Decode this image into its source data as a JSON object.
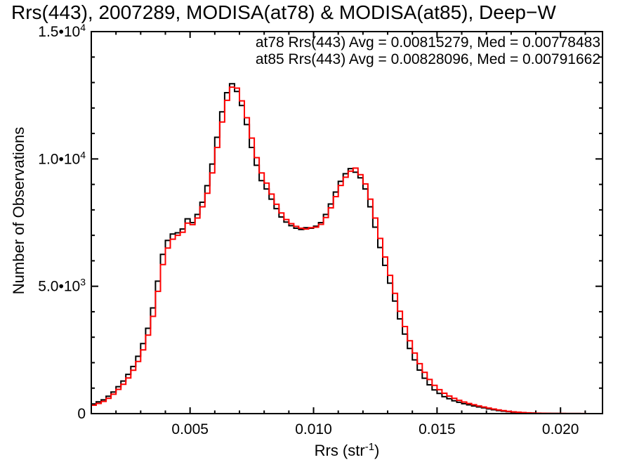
{
  "title": "Rrs(443), 2007289, MODISA(at78) & MODISA(at85), Deep−W",
  "legend": [
    {
      "label": "at78 Rrs(443) Avg = 0.00815279, Med = 0.00778483",
      "color": "#000000"
    },
    {
      "label": "at85 Rrs(443) Avg = 0.00828096, Med = 0.00791662",
      "color": "#ff0000"
    }
  ],
  "axes": {
    "ylabel": "Number of Observations",
    "xlabel_main": "Rrs (str",
    "xlabel_sup": "-1",
    "xlabel_close": ")"
  },
  "chart_data": {
    "type": "line",
    "subtype": "step-histogram",
    "title": "Rrs(443), 2007289, MODISA(at78) & MODISA(at85), Deep−W",
    "xlabel": "Rrs (str^-1)",
    "ylabel": "Number of Observations",
    "grid": false,
    "legend_position": "top-right-inside",
    "xlim": [
      0.001,
      0.0217
    ],
    "ylim": [
      0,
      15000
    ],
    "xticks_major": [
      0.005,
      0.01,
      0.015,
      0.02
    ],
    "xtick_labels": [
      "0.005",
      "0.010",
      "0.015",
      "0.020"
    ],
    "xtick_minor_step": 0.001,
    "yticks_major": [
      0,
      5000,
      10000,
      15000
    ],
    "ytick_labels": [
      {
        "mant": "0",
        "exp": ""
      },
      {
        "mant": "5.0•10",
        "exp": "3"
      },
      {
        "mant": "1.0•10",
        "exp": "4"
      },
      {
        "mant": "1.5•10",
        "exp": "4"
      }
    ],
    "ytick_minor_step": 1000,
    "x_start": 0.0011,
    "x_step": 0.0002,
    "series": [
      {
        "name": "at78",
        "color": "#000000",
        "avg": "0.00815279",
        "med": "0.00778483",
        "values": [
          380,
          460,
          540,
          680,
          850,
          1060,
          1280,
          1540,
          1850,
          2250,
          2750,
          3350,
          4150,
          5200,
          6250,
          6800,
          7050,
          7100,
          7250,
          7650,
          7500,
          7820,
          8300,
          8950,
          9800,
          10850,
          11850,
          12600,
          12950,
          12650,
          12100,
          11350,
          10450,
          9750,
          9150,
          8820,
          8420,
          8050,
          7720,
          7520,
          7380,
          7280,
          7230,
          7300,
          7280,
          7360,
          7500,
          7820,
          8230,
          8700,
          9120,
          9420,
          9620,
          9480,
          9260,
          8820,
          8120,
          7320,
          6520,
          5820,
          5120,
          4420,
          3720,
          3120,
          2560,
          2110,
          1710,
          1390,
          1130,
          930,
          790,
          665,
          585,
          505,
          445,
          390,
          345,
          300,
          262,
          225,
          188,
          152,
          122,
          97,
          76,
          59,
          46,
          36,
          27,
          20,
          15,
          11,
          8,
          6,
          5,
          4,
          3,
          2,
          2,
          1,
          1,
          0,
          0,
          0
        ]
      },
      {
        "name": "at85",
        "color": "#ff0000",
        "avg": "0.00828096",
        "med": "0.00791662",
        "values": [
          330,
          400,
          480,
          600,
          760,
          950,
          1150,
          1400,
          1700,
          2050,
          2500,
          3080,
          3820,
          4800,
          5850,
          6500,
          6850,
          7000,
          7120,
          7480,
          7420,
          7680,
          8120,
          8650,
          9450,
          10450,
          11450,
          12300,
          12820,
          12780,
          12280,
          11620,
          10820,
          10050,
          9450,
          9050,
          8620,
          8220,
          7880,
          7620,
          7460,
          7350,
          7280,
          7250,
          7300,
          7320,
          7430,
          7700,
          8080,
          8520,
          8960,
          9280,
          9520,
          9640,
          9380,
          9020,
          8420,
          7680,
          6880,
          6150,
          5430,
          4720,
          4020,
          3420,
          2860,
          2380,
          1960,
          1620,
          1340,
          1110,
          940,
          800,
          690,
          600,
          520,
          455,
          398,
          348,
          300,
          258,
          218,
          180,
          145,
          115,
          90,
          70,
          54,
          41,
          31,
          23,
          17,
          13,
          10,
          8,
          6,
          5,
          4,
          3,
          2,
          2,
          1,
          1,
          0,
          0
        ]
      }
    ]
  }
}
